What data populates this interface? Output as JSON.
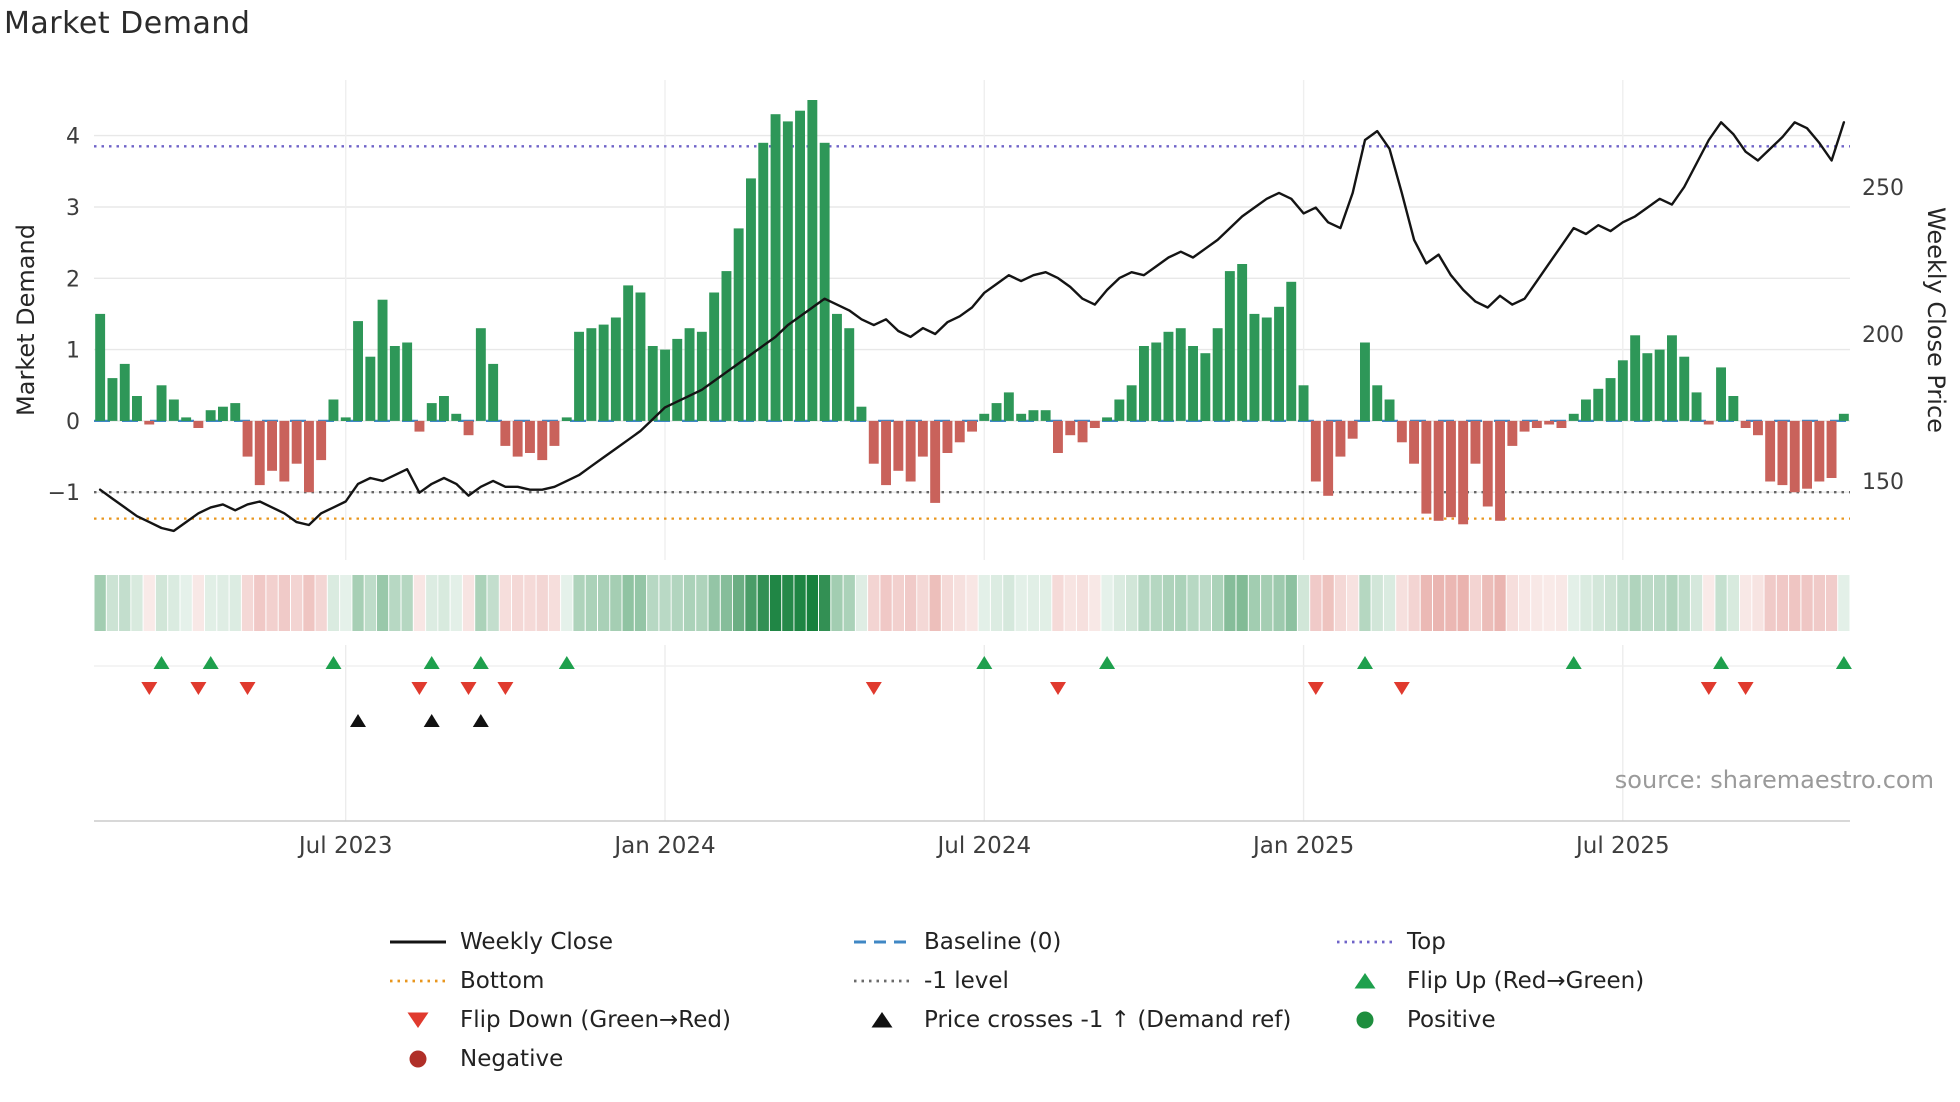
{
  "title": "Market Demand",
  "source_text": "source: sharemaestro.com",
  "axes": {
    "left_label": "Market Demand",
    "right_label": "Weekly Close Price",
    "left_ticks": [
      {
        "v": -1,
        "label": "−1"
      },
      {
        "v": 0,
        "label": "0"
      },
      {
        "v": 1,
        "label": "1"
      },
      {
        "v": 2,
        "label": "2"
      },
      {
        "v": 3,
        "label": "3"
      },
      {
        "v": 4,
        "label": "4"
      }
    ],
    "right_ticks": [
      {
        "v": 150,
        "label": "150"
      },
      {
        "v": 200,
        "label": "200"
      },
      {
        "v": 250,
        "label": "250"
      }
    ]
  },
  "colors": {
    "bar_positive": "#2e9758",
    "bar_negative": "#c9625b",
    "price_line": "#141414",
    "baseline": "#3f87c4",
    "top_line": "#6f63c8",
    "minus1_line": "#666666",
    "bottom_line": "#e8961e",
    "flip_up": "#1ea04d",
    "flip_down": "#e03a2e",
    "price_cross": "#111111",
    "positive_dot": "#1e8e3e",
    "negative_dot": "#b02f28",
    "heatmap_positive": "#17813d",
    "heatmap_negative": "#c83c32"
  },
  "chart_data": {
    "type": "bar",
    "title": "Market Demand",
    "ylabel_left": "Market Demand",
    "ylabel_right": "Weekly Close Price",
    "n_points": 143,
    "x_tick_labels": [
      "Jul 2023",
      "Jan 2024",
      "Jul 2024",
      "Jan 2025",
      "Jul 2025"
    ],
    "x_tick_indices": [
      20,
      46,
      72,
      98,
      124
    ],
    "ylim_left": [
      -1.95,
      4.78
    ],
    "ylim_right": [
      123.1,
      286.4
    ],
    "grid": true,
    "series": [
      {
        "name": "Market Demand",
        "type": "bar",
        "axis": "left",
        "values": [
          1.5,
          0.6,
          0.8,
          0.35,
          -0.05,
          0.5,
          0.3,
          0.05,
          -0.1,
          0.15,
          0.2,
          0.25,
          -0.5,
          -0.9,
          -0.7,
          -0.85,
          -0.6,
          -1.0,
          -0.55,
          0.3,
          0.05,
          1.4,
          0.9,
          1.7,
          1.05,
          1.1,
          -0.15,
          0.25,
          0.35,
          0.1,
          -0.2,
          1.3,
          0.8,
          -0.35,
          -0.5,
          -0.45,
          -0.55,
          -0.35,
          0.05,
          1.25,
          1.3,
          1.35,
          1.45,
          1.9,
          1.8,
          1.05,
          1.0,
          1.15,
          1.3,
          1.25,
          1.8,
          2.1,
          2.7,
          3.4,
          3.9,
          4.3,
          4.2,
          4.35,
          4.5,
          3.9,
          1.5,
          1.3,
          0.2,
          -0.6,
          -0.9,
          -0.7,
          -0.85,
          -0.5,
          -1.15,
          -0.45,
          -0.3,
          -0.15,
          0.1,
          0.25,
          0.4,
          0.1,
          0.15,
          0.15,
          -0.45,
          -0.2,
          -0.3,
          -0.1,
          0.05,
          0.3,
          0.5,
          1.05,
          1.1,
          1.25,
          1.3,
          1.05,
          0.95,
          1.3,
          2.1,
          2.2,
          1.5,
          1.45,
          1.6,
          1.95,
          0.5,
          -0.85,
          -1.05,
          -0.5,
          -0.25,
          1.1,
          0.5,
          0.3,
          -0.3,
          -0.6,
          -1.3,
          -1.4,
          -1.35,
          -1.45,
          -0.6,
          -1.2,
          -1.4,
          -0.35,
          -0.15,
          -0.1,
          -0.05,
          -0.1,
          0.1,
          0.3,
          0.45,
          0.6,
          0.85,
          1.2,
          0.95,
          1.0,
          1.2,
          0.9,
          0.4,
          -0.05,
          0.75,
          0.35,
          -0.1,
          -0.2,
          -0.85,
          -0.9,
          -1.0,
          -0.95,
          -0.85,
          -0.8,
          0.1
        ]
      },
      {
        "name": "Weekly Close",
        "type": "line",
        "axis": "right",
        "values": [
          147,
          144,
          141,
          138,
          136,
          134,
          133,
          136,
          139,
          141,
          142,
          140,
          142,
          143,
          141,
          139,
          136,
          135,
          139,
          141,
          143,
          149,
          151,
          150,
          152,
          154,
          146,
          149,
          151,
          149,
          145,
          148,
          150,
          148,
          148,
          147,
          147,
          148,
          150,
          152,
          155,
          158,
          161,
          164,
          167,
          171,
          175,
          177,
          179,
          181,
          184,
          187,
          190,
          193,
          196,
          199,
          203,
          206,
          209,
          212,
          210,
          208,
          205,
          203,
          205,
          201,
          199,
          202,
          200,
          204,
          206,
          209,
          214,
          217,
          220,
          218,
          220,
          221,
          219,
          216,
          212,
          210,
          215,
          219,
          221,
          220,
          223,
          226,
          228,
          226,
          229,
          232,
          236,
          240,
          243,
          246,
          248,
          246,
          241,
          243,
          238,
          236,
          248,
          266,
          269,
          263,
          248,
          232,
          224,
          227,
          220,
          215,
          211,
          209,
          213,
          210,
          212,
          218,
          224,
          230,
          236,
          234,
          237,
          235,
          238,
          240,
          243,
          246,
          244,
          250,
          258,
          266,
          272,
          268,
          262,
          259,
          263,
          267,
          272,
          270,
          265,
          259,
          272
        ]
      }
    ],
    "reference_lines": [
      {
        "name": "Top",
        "value": 3.85,
        "axis": "left",
        "style": "dotted",
        "color": "#6f63c8"
      },
      {
        "name": "Baseline (0)",
        "value": 0,
        "axis": "left",
        "style": "dashed",
        "color": "#3f87c4"
      },
      {
        "name": "-1 level",
        "value": -1,
        "axis": "left",
        "style": "dotted",
        "color": "#666666"
      },
      {
        "name": "Bottom",
        "value": -1.37,
        "axis": "left",
        "style": "dotted",
        "color": "#e8961e"
      }
    ],
    "heatmap": {
      "max_abs": 4.5
    },
    "markers": {
      "flip_up_indices": [
        5,
        9,
        19,
        27,
        31,
        38,
        72,
        82,
        103,
        120,
        132,
        142
      ],
      "flip_down_indices": [
        4,
        8,
        12,
        26,
        30,
        33,
        63,
        78,
        99,
        106,
        131,
        134
      ],
      "price_cross_up_indices": [
        21,
        27,
        31
      ]
    }
  },
  "legend": {
    "items": [
      {
        "label": "Weekly Close",
        "swatch": "solid-line",
        "color": "#141414",
        "column": 0
      },
      {
        "label": "Bottom",
        "swatch": "dotted-line",
        "color": "#e8961e",
        "column": 0
      },
      {
        "label": "Flip Down (Green→Red)",
        "swatch": "tri-down",
        "color": "#e03a2e",
        "column": 0
      },
      {
        "label": "Negative",
        "swatch": "dot",
        "color": "#b02f28",
        "column": 0
      },
      {
        "label": "Baseline (0)",
        "swatch": "dashed-line",
        "color": "#3f87c4",
        "column": 1
      },
      {
        "label": "-1 level",
        "swatch": "dotted-line",
        "color": "#6b6b6b",
        "column": 1
      },
      {
        "label": "Price crosses -1 ↑ (Demand ref)",
        "swatch": "tri-up",
        "color": "#111111",
        "column": 1
      },
      {
        "label": "Top",
        "swatch": "dotted-line",
        "color": "#6f63c8",
        "column": 2
      },
      {
        "label": "Flip Up (Red→Green)",
        "swatch": "tri-up",
        "color": "#1ea04d",
        "column": 2
      },
      {
        "label": "Positive",
        "swatch": "dot",
        "color": "#1e8e3e",
        "column": 2
      }
    ]
  }
}
